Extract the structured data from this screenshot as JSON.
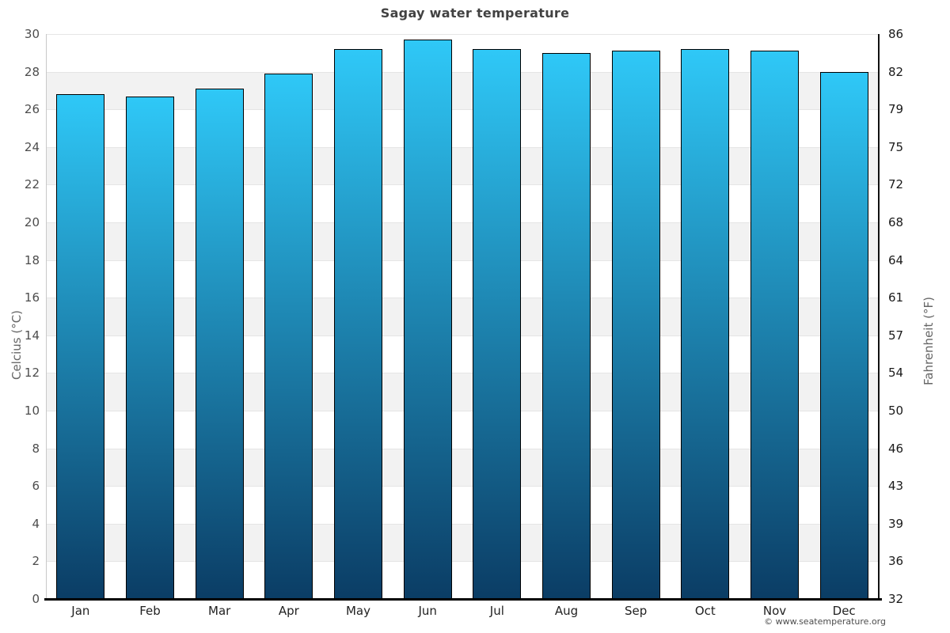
{
  "title": "Sagay water temperature",
  "footer": {
    "copyright": "© www.seatemperature.org"
  },
  "chart_data": {
    "type": "bar",
    "title": "Sagay water temperature",
    "categories": [
      "Jan",
      "Feb",
      "Mar",
      "Apr",
      "May",
      "Jun",
      "Jul",
      "Aug",
      "Sep",
      "Oct",
      "Nov",
      "Dec"
    ],
    "values": [
      26.8,
      26.7,
      27.1,
      27.9,
      29.2,
      29.7,
      29.2,
      29.0,
      29.1,
      29.2,
      29.1,
      28.0
    ],
    "ylabel_left": "Celcius (°C)",
    "ylabel_right": "Fahrenheit (°F)",
    "ylim": [
      0,
      30
    ],
    "y_tick_step": 2,
    "left_tick_labels": [
      "30",
      "28",
      "26",
      "24",
      "22",
      "20",
      "18",
      "16",
      "14",
      "12",
      "10",
      "8",
      "6",
      "4",
      "2",
      "0"
    ],
    "right_tick_labels": [
      "86",
      "82",
      "79",
      "75",
      "72",
      "68",
      "64",
      "61",
      "57",
      "54",
      "50",
      "46",
      "43",
      "39",
      "36",
      "32"
    ],
    "legend": "none",
    "grid": "horizontal-bands",
    "colors": {
      "bar_top": "#2fc8f7",
      "bar_bottom": "#0b3d65",
      "bar_border": "#000000",
      "band": "#f2f2f2",
      "gridline": "#e5e5e5"
    }
  }
}
